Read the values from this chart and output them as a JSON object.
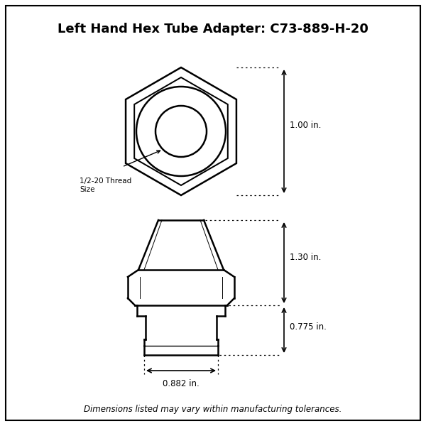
{
  "title": "Left Hand Hex Tube Adapter: C73-889-H-20",
  "footer": "Dimensions listed may vary within manufacturing tolerances.",
  "dim_1_00": "1.00 in.",
  "dim_1_30": "1.30 in.",
  "dim_0_775": "0.775 in.",
  "dim_0_882": "0.882 in.",
  "label_thread": "1/2-20 Thread\nSize",
  "line_color": "#000000",
  "bg_color": "#ffffff",
  "title_fontsize": 13,
  "footer_fontsize": 8.5,
  "dim_fontsize": 8.5,
  "lw_main": 1.8,
  "lw_thin": 1.0,
  "lw_border": 1.5
}
